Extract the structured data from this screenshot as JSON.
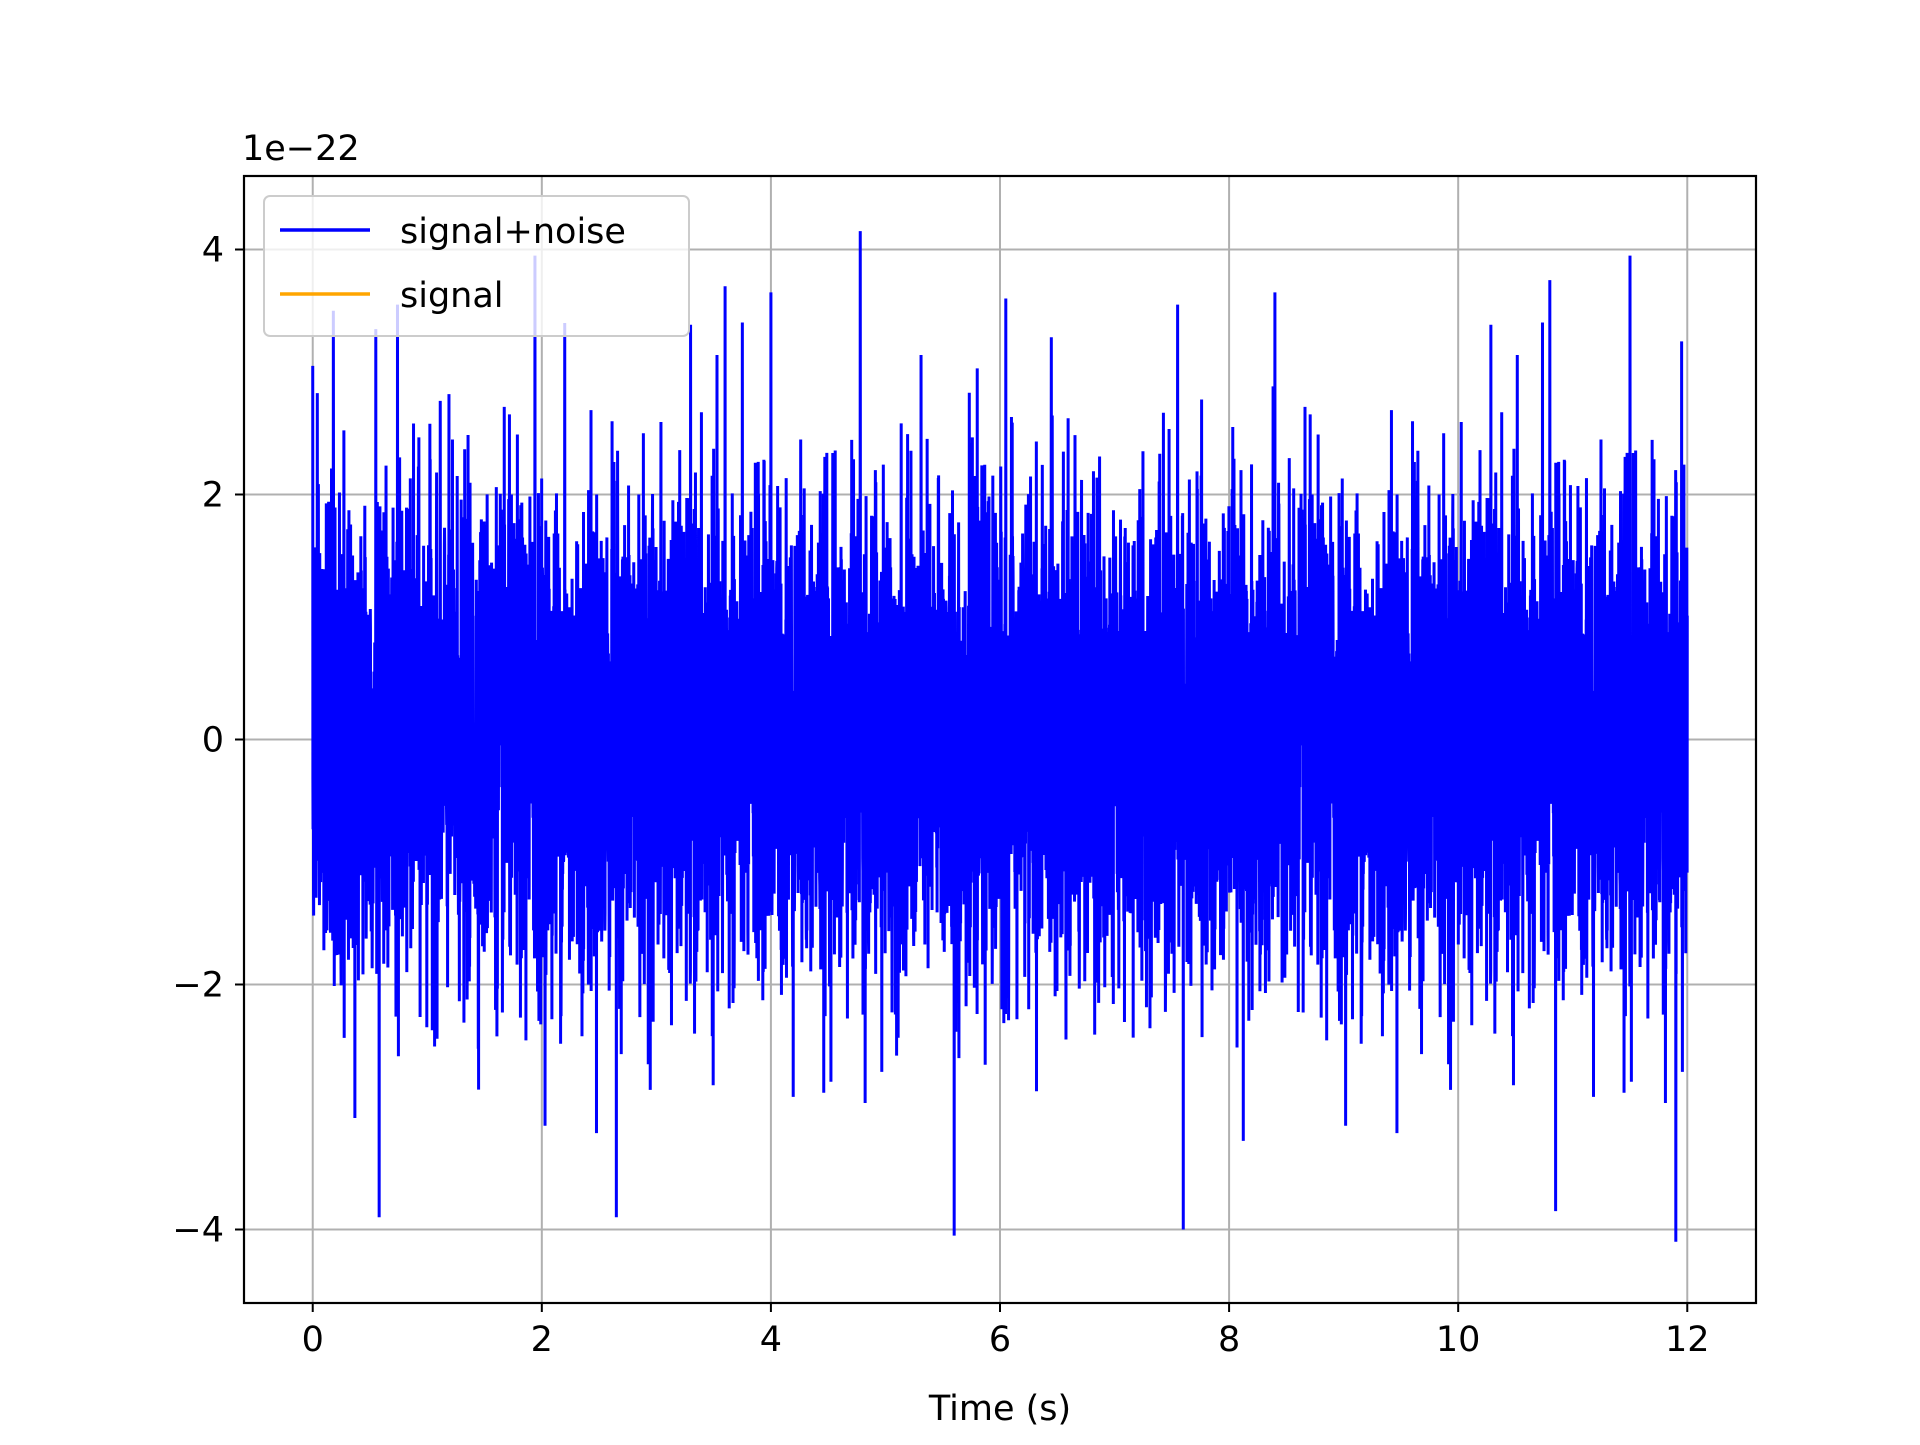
{
  "chart_data": {
    "type": "line",
    "title": "",
    "xlabel": "Time (s)",
    "ylabel": "",
    "y_offset_label": "1e−22",
    "y_scale": 1e-22,
    "xlim": [
      -0.6,
      12.6
    ],
    "ylim": [
      -4.6,
      4.6
    ],
    "xticks": [
      0,
      2,
      4,
      6,
      8,
      10,
      12
    ],
    "xtick_labels": [
      "0",
      "2",
      "4",
      "6",
      "8",
      "10",
      "12"
    ],
    "yticks": [
      -4,
      -2,
      0,
      2,
      4
    ],
    "ytick_labels": [
      "−4",
      "−2",
      "0",
      "2",
      "4"
    ],
    "grid": true,
    "legend_position": "top-left",
    "series": [
      {
        "name": "signal+noise",
        "color": "#0000ff",
        "description_kind": "noise",
        "t_start": 0,
        "t_end": 12,
        "approx_std": 1.0,
        "notable_peaks": [
          {
            "x": 0.0,
            "y": 3.05
          },
          {
            "x": 0.18,
            "y": 3.5
          },
          {
            "x": 0.55,
            "y": 3.35
          },
          {
            "x": 0.58,
            "y": -3.9
          },
          {
            "x": 0.74,
            "y": 3.55
          },
          {
            "x": 1.94,
            "y": 3.95
          },
          {
            "x": 2.2,
            "y": 3.4
          },
          {
            "x": 2.65,
            "y": -3.9
          },
          {
            "x": 3.6,
            "y": 3.7
          },
          {
            "x": 4.0,
            "y": 3.65
          },
          {
            "x": 4.78,
            "y": 4.15
          },
          {
            "x": 5.6,
            "y": -4.05
          },
          {
            "x": 6.05,
            "y": 3.6
          },
          {
            "x": 7.6,
            "y": -4.0
          },
          {
            "x": 7.55,
            "y": 3.55
          },
          {
            "x": 8.4,
            "y": 3.65
          },
          {
            "x": 10.8,
            "y": 3.75
          },
          {
            "x": 10.85,
            "y": -3.85
          },
          {
            "x": 11.5,
            "y": 3.95
          },
          {
            "x": 11.9,
            "y": -4.1
          },
          {
            "x": 11.95,
            "y": 3.25
          }
        ]
      },
      {
        "name": "signal",
        "color": "#ffa500",
        "values_note": "flat at 0, fully hidden beneath signal+noise"
      }
    ]
  }
}
